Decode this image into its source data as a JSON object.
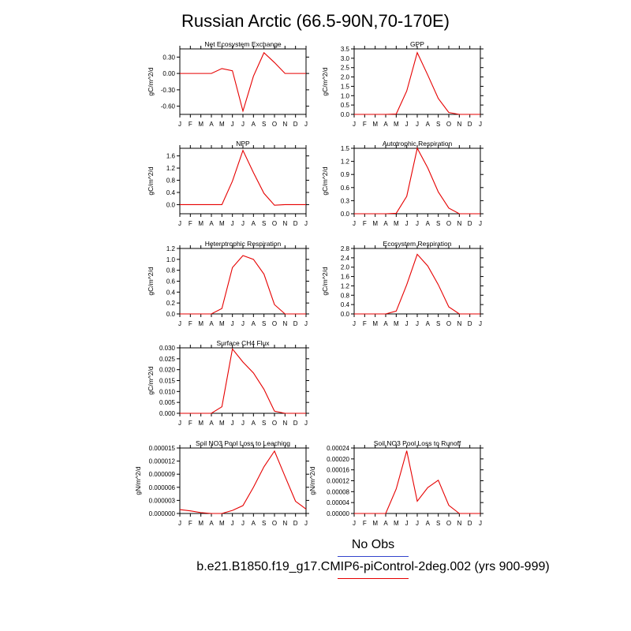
{
  "title": "Russian Arctic (66.5-90N,70-170E)",
  "legend": {
    "obs_label": "No Obs",
    "obs_color": "#3344cc",
    "model_label": "b.e21.B1850.f19_g17.CMIP6-piControl-2deg.002 (yrs 900-999)",
    "model_color": "#e60000"
  },
  "chart_data": [
    {
      "type": "line",
      "title": "Net Ecosystem Exchange",
      "ylabel": "gC/m^2/d",
      "categories": [
        "J",
        "F",
        "M",
        "A",
        "M",
        "J",
        "J",
        "A",
        "S",
        "O",
        "N",
        "D",
        "J"
      ],
      "values": [
        0.0,
        0.0,
        0.0,
        0.0,
        0.09,
        0.05,
        -0.69,
        -0.05,
        0.38,
        0.2,
        0.0,
        0.0,
        0.0
      ],
      "ylim": [
        -0.75,
        0.45
      ],
      "yticks": [
        -0.6,
        -0.3,
        0.0,
        0.3
      ],
      "ytick_labels": [
        "-0.60",
        "-0.30",
        "0.00",
        "0.30"
      ],
      "grid": false
    },
    {
      "type": "line",
      "title": "GPP",
      "ylabel": "gC/m^2/d",
      "categories": [
        "J",
        "F",
        "M",
        "A",
        "M",
        "J",
        "J",
        "A",
        "S",
        "O",
        "N",
        "D",
        "J"
      ],
      "values": [
        0.0,
        0.0,
        0.0,
        0.0,
        0.02,
        1.25,
        3.3,
        2.1,
        0.85,
        0.1,
        0.0,
        0.0,
        0.0
      ],
      "ylim": [
        0,
        3.5
      ],
      "yticks": [
        0,
        0.5,
        1.0,
        1.5,
        2.0,
        2.5,
        3.0,
        3.5
      ],
      "ytick_labels": [
        "0.0",
        "0.5",
        "1.0",
        "1.5",
        "2.0",
        "2.5",
        "3.0",
        "3.5"
      ],
      "grid": false
    },
    {
      "type": "line",
      "title": "NPP",
      "ylabel": "gC/m^2/d",
      "categories": [
        "J",
        "F",
        "M",
        "A",
        "M",
        "J",
        "J",
        "A",
        "S",
        "O",
        "N",
        "D",
        "J"
      ],
      "values": [
        0.0,
        0.0,
        0.0,
        0.0,
        0.0,
        0.77,
        1.78,
        1.05,
        0.37,
        -0.02,
        0.0,
        0.0,
        0.0
      ],
      "ylim": [
        -0.3,
        1.85
      ],
      "yticks": [
        0.0,
        0.4,
        0.8,
        1.2,
        1.6
      ],
      "ytick_labels": [
        "0.0",
        "0.4",
        "0.8",
        "1.2",
        "1.6"
      ],
      "grid": false
    },
    {
      "type": "line",
      "title": "Autotrophic Respiration",
      "ylabel": "gC/m^2/d",
      "categories": [
        "J",
        "F",
        "M",
        "A",
        "M",
        "J",
        "J",
        "A",
        "S",
        "O",
        "N",
        "D",
        "J"
      ],
      "values": [
        0.0,
        0.0,
        0.0,
        0.0,
        0.01,
        0.4,
        1.5,
        1.05,
        0.5,
        0.13,
        0.0,
        0.0,
        0.0
      ],
      "ylim": [
        0,
        1.5
      ],
      "yticks": [
        0,
        0.3,
        0.6,
        0.9,
        1.2,
        1.5
      ],
      "ytick_labels": [
        "0.0",
        "0.3",
        "0.6",
        "0.9",
        "1.2",
        "1.5"
      ],
      "grid": false
    },
    {
      "type": "line",
      "title": "Heterotrophic Respiration",
      "ylabel": "gC/m^2/d",
      "categories": [
        "J",
        "F",
        "M",
        "A",
        "M",
        "J",
        "J",
        "A",
        "S",
        "O",
        "N",
        "D",
        "J"
      ],
      "values": [
        0.0,
        0.0,
        0.0,
        0.0,
        0.1,
        0.85,
        1.07,
        1.0,
        0.73,
        0.17,
        0.0,
        0.0,
        0.0
      ],
      "ylim": [
        0,
        1.2
      ],
      "yticks": [
        0,
        0.2,
        0.4,
        0.6,
        0.8,
        1.0,
        1.2
      ],
      "ytick_labels": [
        "0.0",
        "0.2",
        "0.4",
        "0.6",
        "0.8",
        "1.0",
        "1.2"
      ],
      "grid": false
    },
    {
      "type": "line",
      "title": "Ecosystem Respiration",
      "ylabel": "gC/m^2/d",
      "categories": [
        "J",
        "F",
        "M",
        "A",
        "M",
        "J",
        "J",
        "A",
        "S",
        "O",
        "N",
        "D",
        "J"
      ],
      "values": [
        0.0,
        0.0,
        0.0,
        0.0,
        0.12,
        1.25,
        2.55,
        2.05,
        1.25,
        0.3,
        0.0,
        0.0,
        0.0
      ],
      "ylim": [
        0,
        2.8
      ],
      "yticks": [
        0,
        0.4,
        0.8,
        1.2,
        1.6,
        2.0,
        2.4,
        2.8
      ],
      "ytick_labels": [
        "0.0",
        "0.4",
        "0.8",
        "1.2",
        "1.6",
        "2.0",
        "2.4",
        "2.8"
      ],
      "grid": false
    },
    {
      "type": "line",
      "title": "Surface CH4 Flux",
      "ylabel": "gC/m^2/d",
      "categories": [
        "J",
        "F",
        "M",
        "A",
        "M",
        "J",
        "J",
        "A",
        "S",
        "O",
        "N",
        "D",
        "J"
      ],
      "values": [
        0.0,
        0.0,
        0.0,
        0.0,
        0.003,
        0.0295,
        0.0235,
        0.0185,
        0.011,
        0.001,
        0.0,
        0.0,
        0.0
      ],
      "ylim": [
        0,
        0.03
      ],
      "yticks": [
        0,
        0.005,
        0.01,
        0.015,
        0.02,
        0.025,
        0.03
      ],
      "ytick_labels": [
        "0.000",
        "0.005",
        "0.010",
        "0.015",
        "0.020",
        "0.025",
        "0.030"
      ],
      "grid": false
    },
    {
      "type": "line",
      "title": "Soil NO3 Pool Loss to Leaching",
      "ylabel": "gN/m^2/d",
      "categories": [
        "J",
        "F",
        "M",
        "A",
        "M",
        "J",
        "J",
        "A",
        "S",
        "O",
        "N",
        "D",
        "J"
      ],
      "values": [
        9e-07,
        6e-07,
        2e-07,
        0.0,
        0.0,
        7e-07,
        1.8e-06,
        6e-06,
        1.07e-05,
        1.43e-05,
        8.5e-06,
        2.8e-06,
        1e-06
      ],
      "ylim": [
        0,
        1.5e-05
      ],
      "yticks": [
        0,
        3e-06,
        6e-06,
        9e-06,
        1.2e-05,
        1.5e-05
      ],
      "ytick_labels": [
        "0.000000",
        "0.000003",
        "0.000006",
        "0.000009",
        "0.000012",
        "0.000015"
      ],
      "grid": false
    },
    {
      "type": "line",
      "title": "Soil NO3 Pool Loss to Runoff",
      "ylabel": "gN/m^2/d",
      "categories": [
        "J",
        "F",
        "M",
        "A",
        "M",
        "J",
        "J",
        "A",
        "S",
        "O",
        "N",
        "D",
        "J"
      ],
      "values": [
        0.0,
        0.0,
        0.0,
        0.0,
        9e-05,
        0.00023,
        4.5e-05,
        9.5e-05,
        0.000122,
        3e-05,
        0.0,
        0.0,
        0.0
      ],
      "ylim": [
        0,
        0.00024
      ],
      "yticks": [
        0,
        4e-05,
        8e-05,
        0.00012,
        0.00016,
        0.0002,
        0.00024
      ],
      "ytick_labels": [
        "0.00000",
        "0.00004",
        "0.00008",
        "0.00012",
        "0.00016",
        "0.00020",
        "0.00024"
      ],
      "grid": false
    }
  ]
}
